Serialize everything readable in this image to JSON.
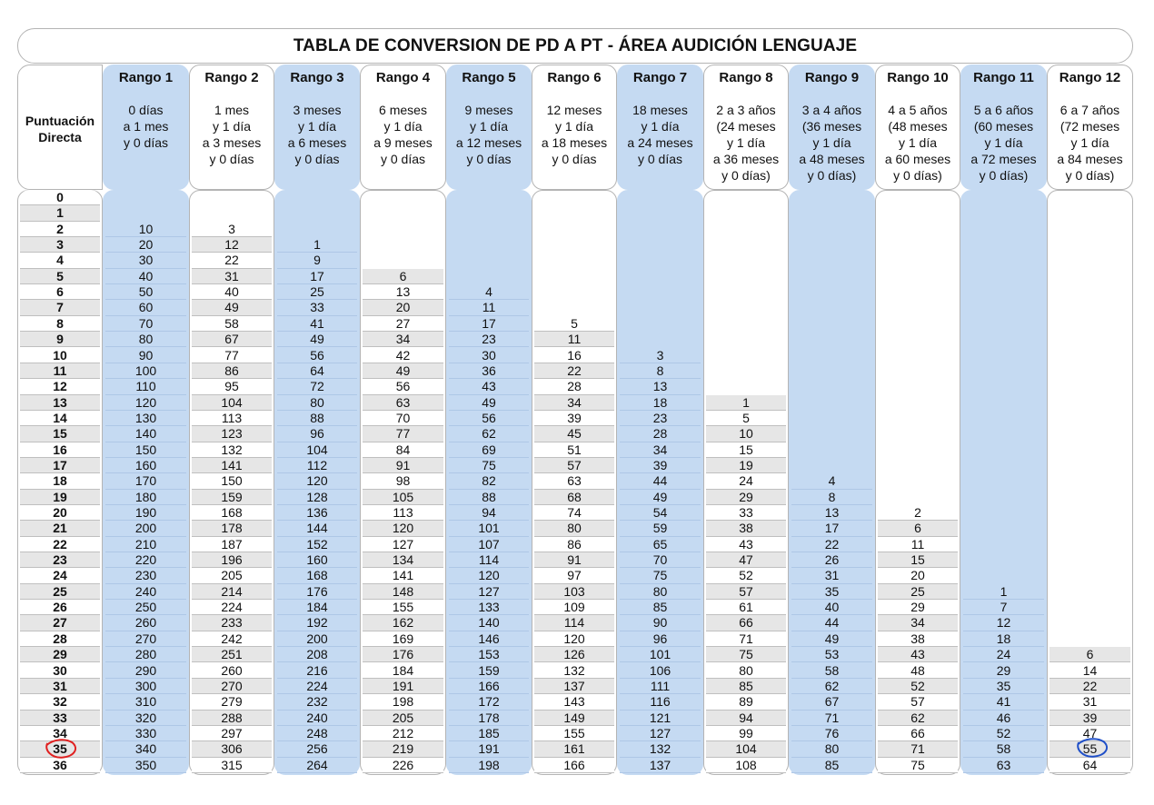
{
  "title": "TABLA DE CONVERSION DE PD A PT - ÁREA AUDICIÓN LENGUAJE",
  "pd_header": "Puntuación\nDirecta",
  "colors": {
    "blue": "#c5daf2",
    "grey": "#e6e6e6",
    "border": "#b4b4b4",
    "red_mark": "#e02020",
    "blue_mark": "#1f4fc8"
  },
  "ranges": [
    {
      "name": "Rango 1",
      "desc": "0 días\na 1 mes\ny 0 días",
      "start": 2,
      "values": [
        10,
        20,
        30,
        40,
        50,
        60,
        70,
        80,
        90,
        100,
        110,
        120,
        130,
        140,
        150,
        160,
        170,
        180,
        190,
        200,
        210,
        220,
        230,
        240,
        250,
        260,
        270,
        280,
        290,
        300,
        310,
        320,
        330,
        340,
        350
      ]
    },
    {
      "name": "Rango 2",
      "desc": "1 mes\ny 1 día\na 3 meses\ny 0 días",
      "start": 2,
      "values": [
        3,
        12,
        22,
        31,
        40,
        49,
        58,
        67,
        77,
        86,
        95,
        104,
        113,
        123,
        132,
        141,
        150,
        159,
        168,
        178,
        187,
        196,
        205,
        214,
        224,
        233,
        242,
        251,
        260,
        270,
        279,
        288,
        297,
        306,
        315
      ]
    },
    {
      "name": "Rango 3",
      "desc": "3 meses\ny 1 día\na 6 meses\ny 0 días",
      "start": 3,
      "values": [
        1,
        9,
        17,
        25,
        33,
        41,
        49,
        56,
        64,
        72,
        80,
        88,
        96,
        104,
        112,
        120,
        128,
        136,
        144,
        152,
        160,
        168,
        176,
        184,
        192,
        200,
        208,
        216,
        224,
        232,
        240,
        248,
        256,
        264
      ]
    },
    {
      "name": "Rango 4",
      "desc": "6 meses\ny 1 día\na 9 meses\ny 0 días",
      "start": 5,
      "values": [
        6,
        13,
        20,
        27,
        34,
        42,
        49,
        56,
        63,
        70,
        77,
        84,
        91,
        98,
        105,
        113,
        120,
        127,
        134,
        141,
        148,
        155,
        162,
        169,
        176,
        184,
        191,
        198,
        205,
        212,
        219,
        226
      ]
    },
    {
      "name": "Rango 5",
      "desc": "9 meses\ny 1 día\na 12 meses\ny 0 días",
      "start": 6,
      "values": [
        4,
        11,
        17,
        23,
        30,
        36,
        43,
        49,
        56,
        62,
        69,
        75,
        82,
        88,
        94,
        101,
        107,
        114,
        120,
        127,
        133,
        140,
        146,
        153,
        159,
        166,
        172,
        178,
        185,
        191,
        198
      ]
    },
    {
      "name": "Rango 6",
      "desc": "12 meses\ny 1 día\na 18 meses\ny 0 días",
      "start": 8,
      "values": [
        5,
        11,
        16,
        22,
        28,
        34,
        39,
        45,
        51,
        57,
        63,
        68,
        74,
        80,
        86,
        91,
        97,
        103,
        109,
        114,
        120,
        126,
        132,
        137,
        143,
        149,
        155,
        161,
        166
      ]
    },
    {
      "name": "Rango 7",
      "desc": "18 meses\ny 1 día\na 24 meses\ny 0 días",
      "start": 10,
      "values": [
        3,
        8,
        13,
        18,
        23,
        28,
        34,
        39,
        44,
        49,
        54,
        59,
        65,
        70,
        75,
        80,
        85,
        90,
        96,
        101,
        106,
        111,
        116,
        121,
        127,
        132,
        137
      ]
    },
    {
      "name": "Rango 8",
      "desc": "2 a 3 años\n(24 meses\ny 1 día\na 36 meses\ny 0 días)",
      "start": 13,
      "values": [
        1,
        5,
        10,
        15,
        19,
        24,
        29,
        33,
        38,
        43,
        47,
        52,
        57,
        61,
        66,
        71,
        75,
        80,
        85,
        89,
        94,
        99,
        104,
        108
      ]
    },
    {
      "name": "Rango 9",
      "desc": "3 a 4 años\n(36 meses\ny 1 día\na 48 meses\ny 0 días)",
      "start": 18,
      "values": [
        4,
        8,
        13,
        17,
        22,
        26,
        31,
        35,
        40,
        44,
        49,
        53,
        58,
        62,
        67,
        71,
        76,
        80,
        85
      ]
    },
    {
      "name": "Rango 10",
      "desc": "4 a 5 años\n(48 meses\ny 1 día\na 60 meses\ny 0 días)",
      "start": 20,
      "values": [
        2,
        6,
        11,
        15,
        20,
        25,
        29,
        34,
        38,
        43,
        48,
        52,
        57,
        62,
        66,
        71,
        75
      ]
    },
    {
      "name": "Rango 11",
      "desc": "5 a 6 años\n(60 meses\ny 1 día\na 72 meses\ny 0 días)",
      "start": 25,
      "values": [
        1,
        7,
        12,
        18,
        24,
        29,
        35,
        41,
        46,
        52,
        58,
        63
      ]
    },
    {
      "name": "Rango 12",
      "desc": "6 a 7 años\n(72 meses\ny 1 día\na 84 meses\ny 0 días)",
      "start": 29,
      "values": [
        6,
        14,
        22,
        31,
        39,
        47,
        55,
        64
      ]
    }
  ],
  "pd_values": [
    0,
    1,
    2,
    3,
    4,
    5,
    6,
    7,
    8,
    9,
    10,
    11,
    12,
    13,
    14,
    15,
    16,
    17,
    18,
    19,
    20,
    21,
    22,
    23,
    24,
    25,
    26,
    27,
    28,
    29,
    30,
    31,
    32,
    33,
    34,
    35,
    36
  ],
  "highlight": {
    "pd": 35,
    "range": 12
  }
}
